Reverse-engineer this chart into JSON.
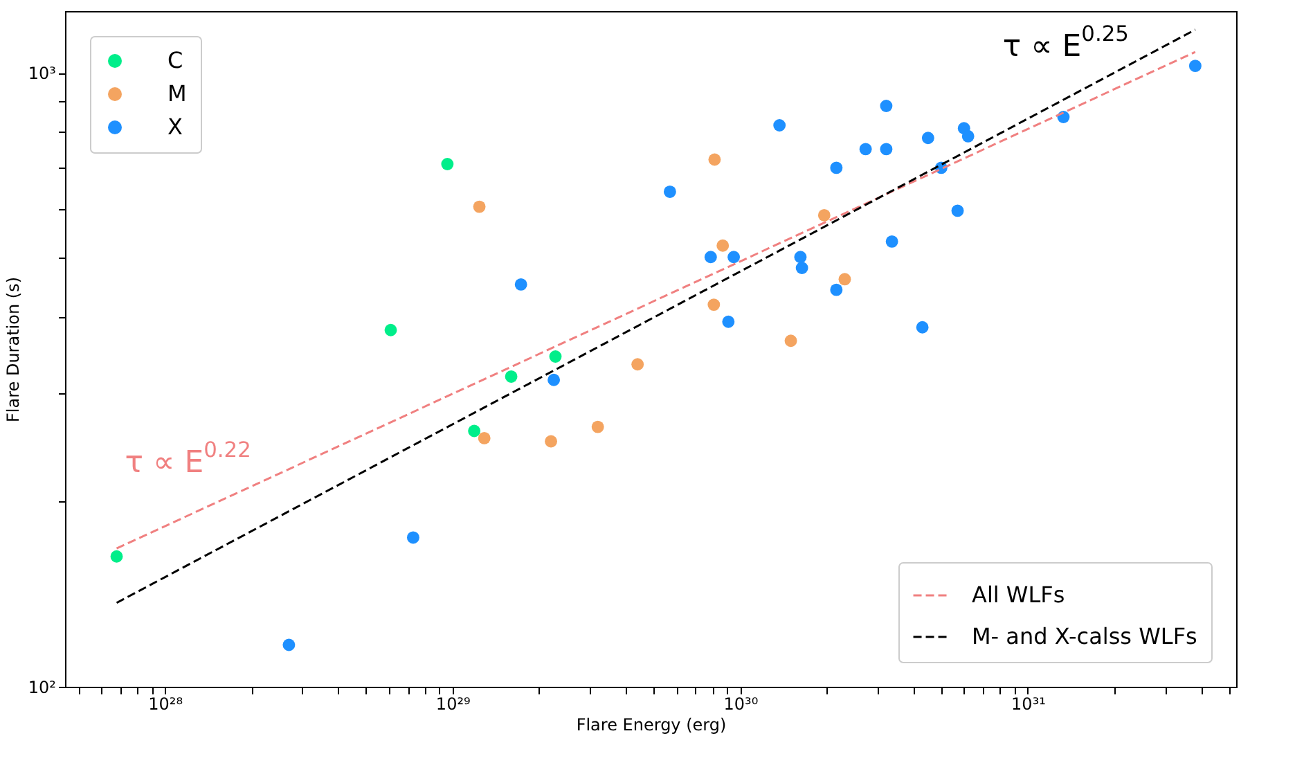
{
  "chart_data": {
    "type": "scatter",
    "xlabel": "Flare Energy (erg)",
    "ylabel": "Flare Duration (s)",
    "log": "xy",
    "marker": "circle",
    "legend": "top left",
    "xlim": [
      4.5e+27,
      5.3e+31
    ],
    "ylim": [
      100,
      1260
    ],
    "xticks": [
      {
        "value": 5e+27,
        "label": null
      },
      {
        "value": 6e+27,
        "label": null
      },
      {
        "value": 7e+27,
        "label": null
      },
      {
        "value": 8e+27,
        "label": null
      },
      {
        "value": 9e+27,
        "label": null
      },
      {
        "value": 1e+28,
        "label": "10²⁸"
      },
      {
        "value": 2e+28,
        "label": null
      },
      {
        "value": 3e+28,
        "label": null
      },
      {
        "value": 4e+28,
        "label": null
      },
      {
        "value": 5e+28,
        "label": null
      },
      {
        "value": 6e+28,
        "label": null
      },
      {
        "value": 7e+28,
        "label": null
      },
      {
        "value": 8e+28,
        "label": null
      },
      {
        "value": 9e+28,
        "label": null
      },
      {
        "value": 1e+29,
        "label": "10²⁹"
      },
      {
        "value": 2e+29,
        "label": null
      },
      {
        "value": 3e+29,
        "label": null
      },
      {
        "value": 4e+29,
        "label": null
      },
      {
        "value": 5e+29,
        "label": null
      },
      {
        "value": 6e+29,
        "label": null
      },
      {
        "value": 7e+29,
        "label": null
      },
      {
        "value": 8e+29,
        "label": null
      },
      {
        "value": 9e+29,
        "label": null
      },
      {
        "value": 1e+30,
        "label": "10³⁰"
      },
      {
        "value": 2e+30,
        "label": null
      },
      {
        "value": 3e+30,
        "label": null
      },
      {
        "value": 4e+30,
        "label": null
      },
      {
        "value": 5e+30,
        "label": null
      },
      {
        "value": 6e+30,
        "label": null
      },
      {
        "value": 7e+30,
        "label": null
      },
      {
        "value": 8e+30,
        "label": null
      },
      {
        "value": 9e+30,
        "label": null
      },
      {
        "value": 1e+31,
        "label": "10³¹"
      },
      {
        "value": 2e+31,
        "label": null
      },
      {
        "value": 3e+31,
        "label": null
      },
      {
        "value": 4e+31,
        "label": null
      },
      {
        "value": 5e+31,
        "label": null
      }
    ],
    "yticks": [
      {
        "value": 100,
        "label": "10²"
      },
      {
        "value": 200,
        "label": null
      },
      {
        "value": 300,
        "label": null
      },
      {
        "value": 400,
        "label": null
      },
      {
        "value": 500,
        "label": null
      },
      {
        "value": 600,
        "label": null
      },
      {
        "value": 700,
        "label": null
      },
      {
        "value": 800,
        "label": null
      },
      {
        "value": 900,
        "label": null
      },
      {
        "value": 1000,
        "label": "10³"
      }
    ],
    "annotations": [
      "τ ∝ E$^{0.22}$",
      "τ ∝ E$^{0.25}$"
    ],
    "series": [
      {
        "name": "C",
        "color": "#00ee8a",
        "x": [
          6.8e+27,
          9.6e+28,
          6.1e+28,
          1.6e+29,
          2.28e+29,
          1.19e+29
        ],
        "values": [
          163,
          710,
          381,
          320,
          345,
          261
        ]
      },
      {
        "name": "M",
        "color": "#f4a460",
        "x": [
          1.24e+29,
          1.29e+29,
          2.2e+29,
          3.2e+29,
          4.4e+29,
          8.15e+29,
          8.7e+29,
          8.1e+29,
          1.5e+30,
          1.96e+30,
          2.31e+30
        ],
        "values": [
          605,
          254,
          251,
          265,
          335,
          722,
          523,
          419,
          366,
          586,
          461
        ]
      },
      {
        "name": "X",
        "color": "#1e90ff",
        "x": [
          2.7e+28,
          7.3e+28,
          1.73e+29,
          2.25e+29,
          5.7e+29,
          7.9e+29,
          9.5e+29,
          9.1e+29,
          1.37e+30,
          1.62e+30,
          1.64e+30,
          2.16e+30,
          2.16e+30,
          2.73e+30,
          3.22e+30,
          3.22e+30,
          3.37e+30,
          4.5e+30,
          4.3e+30,
          5e+30,
          5.7e+30,
          6e+30,
          6.2e+30,
          1.33e+31,
          3.82e+31
        ],
        "values": [
          117,
          175,
          452,
          316,
          640,
          501,
          501,
          393,
          821,
          501,
          481,
          700,
          443,
          751,
          883,
          751,
          531,
          783,
          385,
          700,
          596,
          812,
          788,
          847,
          1026
        ]
      },
      {
        "name": "All WLFs",
        "type": "line",
        "marker": "none",
        "line_style": "dashed",
        "color": "#f08080",
        "x": [
          6.8e+27,
          3.82e+31
        ],
        "values": [
          168,
          1081
        ]
      },
      {
        "name": "M- and X-calss WLFs",
        "type": "line",
        "marker": "none",
        "line_style": "dashed",
        "color": "#000000",
        "x": [
          6.8e+27,
          3.82e+31
        ],
        "values": [
          137,
          1175
        ]
      }
    ]
  }
}
